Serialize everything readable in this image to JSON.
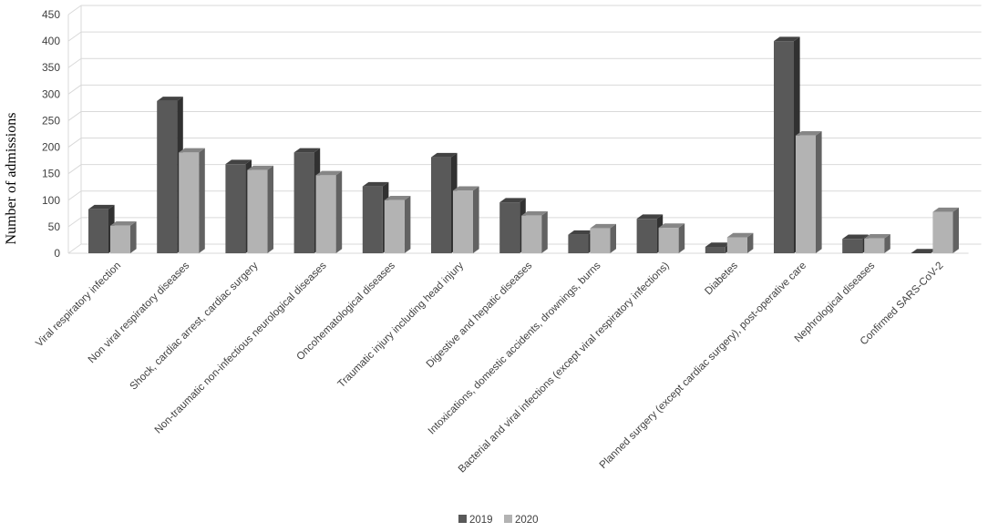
{
  "chart_data": {
    "type": "bar",
    "style": "3d-clustered-column",
    "ylabel": "Number of admissions",
    "ylim": [
      0,
      450
    ],
    "yticks": [
      0,
      50,
      100,
      150,
      200,
      250,
      300,
      350,
      400,
      450
    ],
    "grid": true,
    "legend_position": "bottom",
    "categories": [
      "Viral respiratory infection",
      "Non viral respiratory diseases",
      "Shock, cardiac arrest, cardiac surgery",
      "Non-traumatic non-infectious neurological diseases",
      "Oncohematological diseases",
      "Traumatic injury including head injury",
      "Digestive and hepatic diseases",
      "Intoxications, domestic accidents, drownings, burns",
      "Bacterial  and viral infections (except viral respiratory infections)",
      "Diabetes",
      "Planned surgery (except cardiac surgery), post-operative care",
      "Nephrological diseases",
      "Confirmed SARS-CoV-2"
    ],
    "series": [
      {
        "name": "2019",
        "color": "#595959",
        "values": [
          83,
          287,
          168,
          190,
          126,
          181,
          96,
          35,
          65,
          12,
          400,
          27,
          0
        ]
      },
      {
        "name": "2020",
        "color": "#b3b3b3",
        "values": [
          52,
          190,
          157,
          147,
          100,
          118,
          71,
          47,
          48,
          30,
          222,
          28,
          78
        ]
      }
    ]
  }
}
